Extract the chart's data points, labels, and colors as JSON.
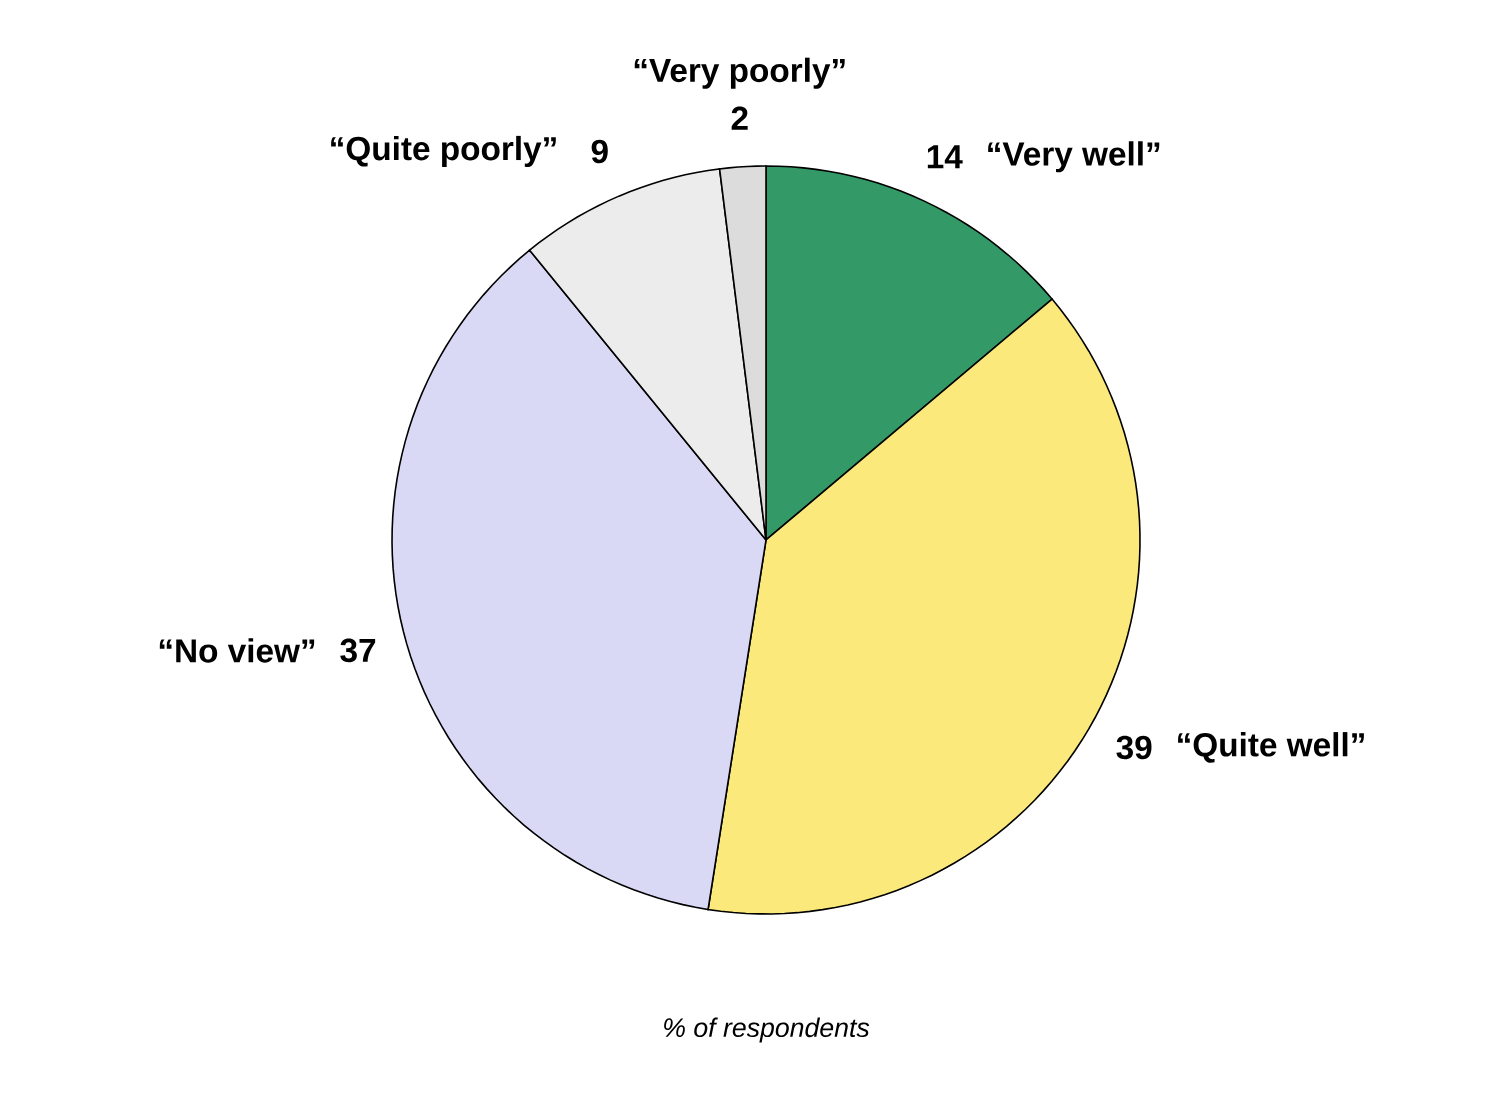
{
  "chart_data": {
    "type": "pie",
    "categories": [
      "“Very well”",
      "“Quite well”",
      "“No view”",
      "“Quite poorly”",
      "“Very poorly”"
    ],
    "values": [
      14,
      39,
      37,
      9,
      2
    ],
    "colors": [
      "#339966",
      "#fbe97c",
      "#d9d9f6",
      "#ececec",
      "#dcdcdc"
    ],
    "data_labels": true,
    "annotations": [
      "% of respondents"
    ]
  }
}
